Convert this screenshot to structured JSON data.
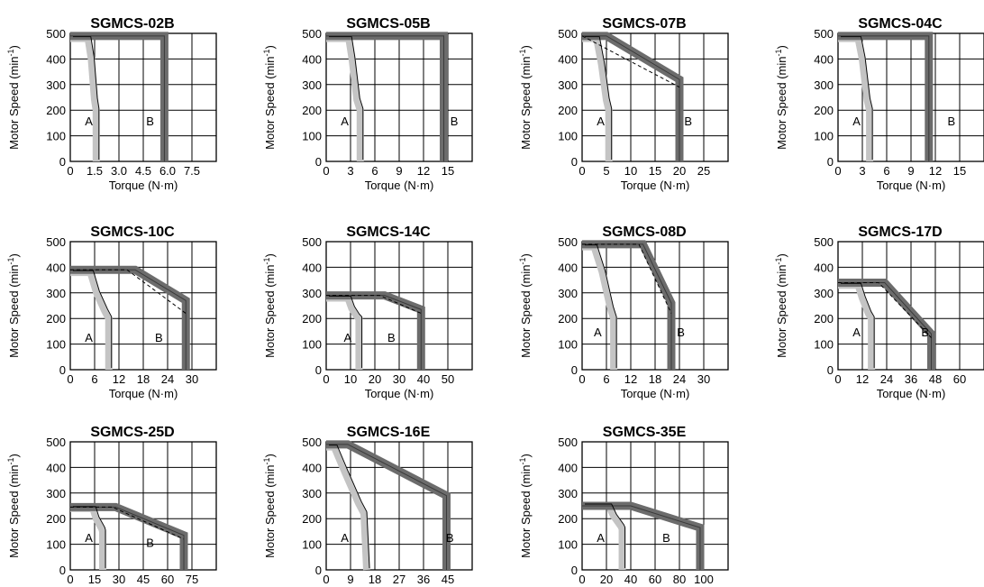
{
  "chart_data": [
    {
      "type": "line",
      "title": "SGMCS-02B",
      "xlabel": "Torque (N·m)",
      "ylabel": "Motor Speed (min-1)",
      "xticks": [
        "0",
        "1.5",
        "3.0",
        "4.5",
        "6.0",
        "7.5"
      ],
      "yticks": [
        "0",
        "100",
        "200",
        "300",
        "400",
        "500"
      ],
      "xlim": [
        0,
        9
      ],
      "ylim": [
        0,
        500
      ],
      "regions": [
        "A",
        "B"
      ],
      "series": [
        {
          "values_x": [
            0,
            1.1,
            1.3,
            1.5,
            1.6,
            1.6
          ],
          "values_y": [
            480,
            480,
            400,
            240,
            200,
            0
          ]
        },
        {
          "values_x": [
            0,
            5.8,
            5.8
          ],
          "values_y": [
            490,
            490,
            0
          ]
        }
      ]
    },
    {
      "type": "line",
      "title": "SGMCS-05B",
      "xlabel": "Torque (N·m)",
      "ylabel": "Motor Speed (min-1)",
      "xticks": [
        "0",
        "3",
        "6",
        "9",
        "12",
        "15"
      ],
      "yticks": [
        "0",
        "100",
        "200",
        "300",
        "400",
        "500"
      ],
      "xlim": [
        0,
        18
      ],
      "ylim": [
        0,
        500
      ],
      "regions": [
        "A",
        "B"
      ],
      "series": [
        {
          "values_x": [
            0,
            2.8,
            3.2,
            3.8,
            4.2,
            4.2
          ],
          "values_y": [
            480,
            480,
            400,
            240,
            200,
            0
          ]
        },
        {
          "values_x": [
            0,
            14.5,
            14.5
          ],
          "values_y": [
            490,
            490,
            0
          ]
        }
      ]
    },
    {
      "type": "line",
      "title": "SGMCS-07B",
      "xlabel": "Torque (N·m)",
      "ylabel": "Motor Speed (min-1)",
      "xticks": [
        "0",
        "5",
        "10",
        "15",
        "20",
        "25"
      ],
      "yticks": [
        "0",
        "100",
        "200",
        "300",
        "400",
        "500"
      ],
      "xlim": [
        0,
        30
      ],
      "ylim": [
        0,
        500
      ],
      "regions": [
        "A",
        "B"
      ],
      "series": [
        {
          "values_x": [
            0,
            3,
            4,
            5,
            5.5,
            5.5
          ],
          "values_y": [
            480,
            480,
            380,
            240,
            200,
            0
          ]
        },
        {
          "values_x": [
            0,
            5,
            20,
            20
          ],
          "values_y": [
            490,
            490,
            320,
            0
          ]
        },
        {
          "values_x": [
            0,
            20
          ],
          "values_y": [
            490,
            290
          ]
        }
      ]
    },
    {
      "type": "line",
      "title": "SGMCS-04C",
      "xlabel": "Torque (N·m)",
      "ylabel": "Motor Speed (min-1)",
      "xticks": [
        "0",
        "3",
        "6",
        "9",
        "12",
        "15"
      ],
      "yticks": [
        "0",
        "100",
        "200",
        "300",
        "400",
        "500"
      ],
      "xlim": [
        0,
        18
      ],
      "ylim": [
        0,
        500
      ],
      "regions": [
        "A",
        "B"
      ],
      "series": [
        {
          "values_x": [
            0,
            2.5,
            3,
            3.6,
            3.9,
            3.9
          ],
          "values_y": [
            480,
            480,
            400,
            240,
            200,
            0
          ]
        },
        {
          "values_x": [
            0,
            11.2,
            11.2
          ],
          "values_y": [
            490,
            490,
            0
          ]
        }
      ]
    },
    {
      "type": "line",
      "title": "SGMCS-10C",
      "xlabel": "Torque (N·m)",
      "ylabel": "Motor Speed (min-1)",
      "xticks": [
        "0",
        "6",
        "12",
        "18",
        "24",
        "30"
      ],
      "yticks": [
        "0",
        "100",
        "200",
        "300",
        "400",
        "500"
      ],
      "xlim": [
        0,
        36
      ],
      "ylim": [
        0,
        500
      ],
      "regions": [
        "A",
        "B"
      ],
      "series": [
        {
          "values_x": [
            0,
            5,
            6.5,
            8.5,
            9.5,
            9.5
          ],
          "values_y": [
            380,
            380,
            300,
            230,
            200,
            0
          ]
        },
        {
          "values_x": [
            0,
            16,
            28.5,
            28.5
          ],
          "values_y": [
            390,
            390,
            270,
            0
          ]
        },
        {
          "values_x": [
            0,
            14,
            28.5
          ],
          "values_y": [
            390,
            390,
            220
          ]
        }
      ]
    },
    {
      "type": "line",
      "title": "SGMCS-14C",
      "xlabel": "Torque (N·m)",
      "ylabel": "Motor Speed (min-1)",
      "xticks": [
        "0",
        "10",
        "20",
        "30",
        "40",
        "50"
      ],
      "yticks": [
        "0",
        "100",
        "200",
        "300",
        "400",
        "500"
      ],
      "xlim": [
        0,
        60
      ],
      "ylim": [
        0,
        500
      ],
      "regions": [
        "A",
        "B"
      ],
      "series": [
        {
          "values_x": [
            0,
            9,
            10.5,
            12.5,
            13.5,
            13.5
          ],
          "values_y": [
            280,
            280,
            240,
            210,
            200,
            0
          ]
        },
        {
          "values_x": [
            0,
            24,
            39,
            39
          ],
          "values_y": [
            290,
            290,
            235,
            0
          ]
        },
        {
          "values_x": [
            0,
            22,
            39
          ],
          "values_y": [
            290,
            290,
            220
          ]
        }
      ]
    },
    {
      "type": "line",
      "title": "SGMCS-08D",
      "xlabel": "Torque (N·m)",
      "ylabel": "Motor Speed (min-1)",
      "xticks": [
        "0",
        "6",
        "12",
        "18",
        "24",
        "30"
      ],
      "yticks": [
        "0",
        "100",
        "200",
        "300",
        "400",
        "500"
      ],
      "xlim": [
        0,
        36
      ],
      "ylim": [
        0,
        500
      ],
      "regions": [
        "A",
        "B"
      ],
      "series": [
        {
          "values_x": [
            0,
            3,
            5,
            7,
            7.8,
            7.8
          ],
          "values_y": [
            480,
            480,
            380,
            240,
            200,
            0
          ]
        },
        {
          "values_x": [
            0,
            15,
            22,
            22
          ],
          "values_y": [
            490,
            490,
            260,
            0
          ]
        },
        {
          "values_x": [
            0,
            14,
            22
          ],
          "values_y": [
            490,
            490,
            220
          ]
        }
      ]
    },
    {
      "type": "line",
      "title": "SGMCS-17D",
      "xlabel": "Torque (N·m)",
      "ylabel": "Motor Speed (min-1)",
      "xticks": [
        "0",
        "12",
        "24",
        "36",
        "48",
        "60"
      ],
      "yticks": [
        "0",
        "100",
        "200",
        "300",
        "400",
        "500"
      ],
      "xlim": [
        0,
        72
      ],
      "ylim": [
        0,
        500
      ],
      "regions": [
        "A",
        "B"
      ],
      "series": [
        {
          "values_x": [
            0,
            10,
            12,
            15,
            16.5,
            16.5
          ],
          "values_y": [
            330,
            330,
            280,
            220,
            200,
            0
          ]
        },
        {
          "values_x": [
            0,
            23,
            46,
            46
          ],
          "values_y": [
            340,
            340,
            140,
            0
          ]
        },
        {
          "values_x": [
            0,
            20,
            46
          ],
          "values_y": [
            340,
            340,
            125
          ]
        }
      ]
    },
    {
      "type": "line",
      "title": "SGMCS-25D",
      "xlabel": "Torque (N·m)",
      "ylabel": "Motor Speed (min-1)",
      "xticks": [
        "0",
        "15",
        "30",
        "45",
        "60",
        "75"
      ],
      "yticks": [
        "0",
        "100",
        "200",
        "300",
        "400",
        "500"
      ],
      "xlim": [
        0,
        90
      ],
      "ylim": [
        0,
        500
      ],
      "regions": [
        "A",
        "B"
      ],
      "series": [
        {
          "values_x": [
            0,
            14,
            16,
            19.5,
            20,
            20
          ],
          "values_y": [
            240,
            240,
            200,
            160,
            150,
            0
          ]
        },
        {
          "values_x": [
            0,
            28,
            70,
            70
          ],
          "values_y": [
            245,
            245,
            135,
            0
          ]
        },
        {
          "values_x": [
            0,
            26,
            70
          ],
          "values_y": [
            245,
            245,
            120
          ]
        }
      ]
    },
    {
      "type": "line",
      "title": "SGMCS-16E",
      "xlabel": "Torque (N·m)",
      "ylabel": "Motor Speed (min-1)",
      "xticks": [
        "0",
        "9",
        "18",
        "27",
        "36",
        "45"
      ],
      "yticks": [
        "0",
        "100",
        "200",
        "300",
        "400",
        "500"
      ],
      "xlim": [
        0,
        54
      ],
      "ylim": [
        0,
        500
      ],
      "regions": [
        "A",
        "B"
      ],
      "series": [
        {
          "values_x": [
            0,
            3,
            7,
            12,
            14,
            15
          ],
          "values_y": [
            480,
            480,
            380,
            260,
            220,
            0
          ]
        },
        {
          "values_x": [
            0,
            8,
            44.5,
            44.5
          ],
          "values_y": [
            490,
            490,
            290,
            0
          ]
        }
      ]
    },
    {
      "type": "line",
      "title": "SGMCS-35E",
      "xlabel": "Torque (N·m)",
      "ylabel": "Motor Speed (min-1)",
      "xticks": [
        "0",
        "20",
        "40",
        "60",
        "80",
        "100"
      ],
      "yticks": [
        "0",
        "100",
        "200",
        "300",
        "400",
        "500"
      ],
      "xlim": [
        0,
        120
      ],
      "ylim": [
        0,
        500
      ],
      "regions": [
        "A",
        "B"
      ],
      "series": [
        {
          "values_x": [
            0,
            22,
            26,
            32,
            33,
            33
          ],
          "values_y": [
            250,
            250,
            210,
            170,
            160,
            0
          ]
        },
        {
          "values_x": [
            0,
            40,
            97,
            97
          ],
          "values_y": [
            250,
            250,
            165,
            0
          ]
        }
      ]
    }
  ]
}
